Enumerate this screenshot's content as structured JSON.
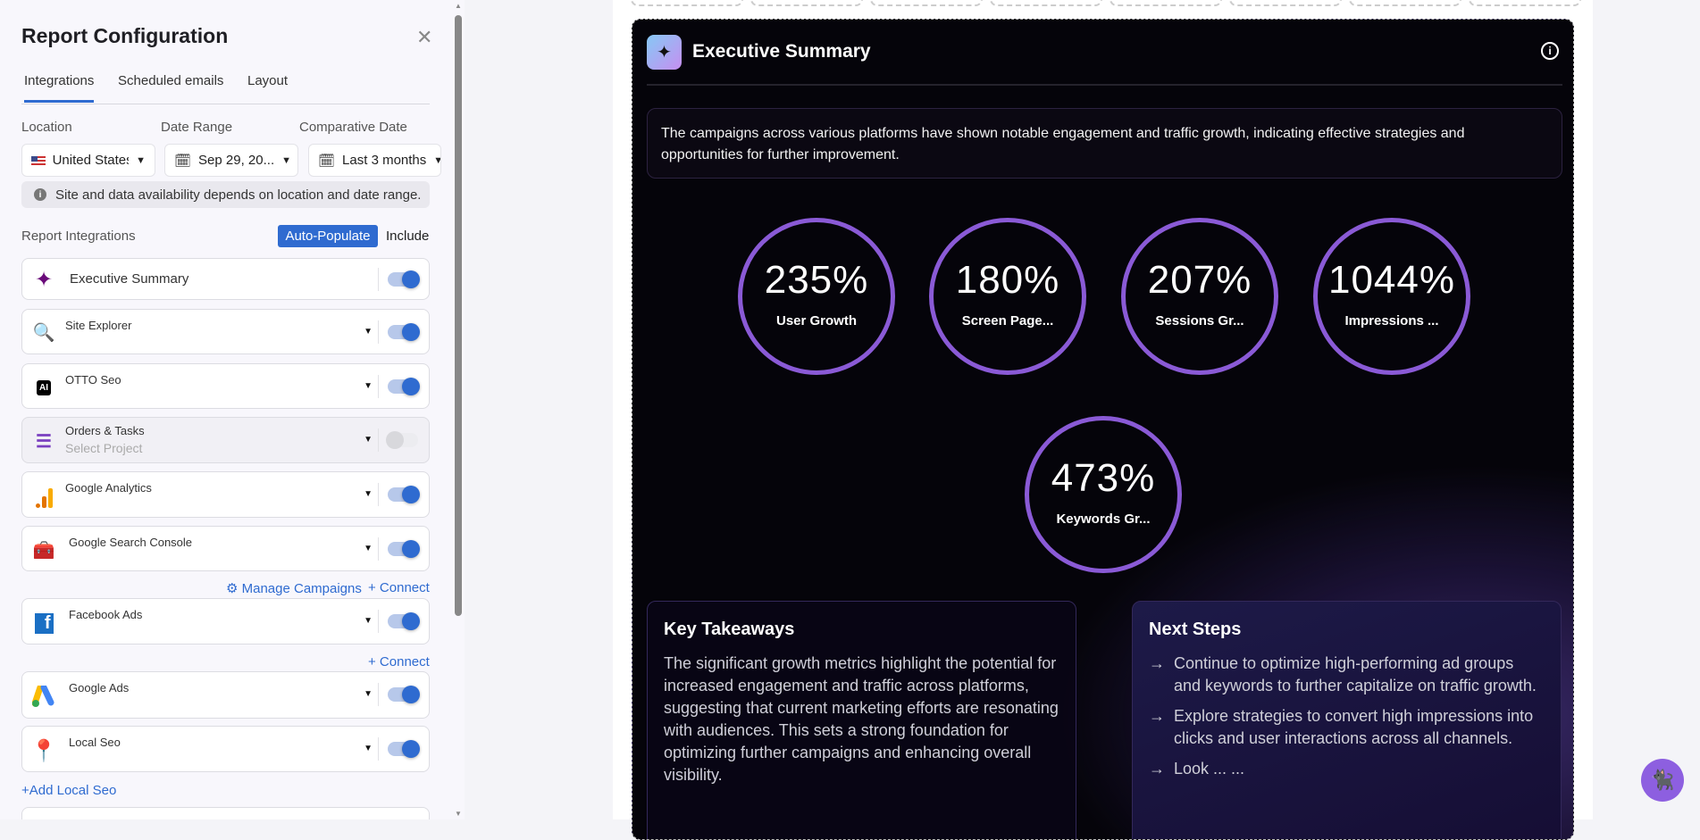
{
  "panel": {
    "title": "Report Configuration",
    "close_icon": "close-icon",
    "tabs": [
      {
        "label": "Integrations",
        "active": true
      },
      {
        "label": "Scheduled emails"
      },
      {
        "label": "Layout"
      }
    ],
    "location": {
      "label": "Location",
      "value": "United States"
    },
    "date_range": {
      "label": "Date Range",
      "value": "Sep 29, 20..."
    },
    "comparative": {
      "label": "Comparative Date",
      "value": "Last 3 months"
    },
    "info": "Site and data availability depends on location and date range.",
    "integrations_label": "Report Integrations",
    "auto_populate": "Auto-Populate",
    "include": "Include",
    "rows": [
      {
        "name": "Executive Summary",
        "icon": "sparkle-icon",
        "on": true
      },
      {
        "name": "Site Explorer",
        "icon": "site-explorer-icon",
        "on": true
      },
      {
        "name": "OTTO Seo",
        "icon": "ai-chip-icon",
        "on": true
      },
      {
        "name": "Orders & Tasks",
        "sub": "Select Project",
        "icon": "tasks-icon",
        "on": false
      },
      {
        "name": "Google Analytics",
        "icon": "google-analytics-icon",
        "on": true
      },
      {
        "name": "Google Search Console",
        "icon": "search-console-icon",
        "on": true
      },
      {
        "name": "Facebook Ads",
        "icon": "facebook-icon",
        "on": true
      },
      {
        "name": "Google Ads",
        "icon": "google-ads-icon",
        "on": true
      },
      {
        "name": "Local Seo",
        "icon": "map-pin-icon",
        "on": true
      }
    ],
    "manage_campaigns": "Manage Campaigns",
    "connect": "+ Connect",
    "add_local_seo": "+Add Local Seo"
  },
  "summary": {
    "title": "Executive Summary",
    "text": "The campaigns across various platforms have shown notable engagement and traffic growth, indicating effective strategies and opportunities for further improvement.",
    "metrics": [
      {
        "value": "235%",
        "label": "User Growth"
      },
      {
        "value": "180%",
        "label": "Screen Page..."
      },
      {
        "value": "207%",
        "label": "Sessions Gr..."
      },
      {
        "value": "1044%",
        "label": "Impressions ..."
      },
      {
        "value": "473%",
        "label": "Keywords Gr..."
      }
    ],
    "key_takeaways": {
      "title": "Key Takeaways",
      "text": "The significant growth metrics highlight the potential for increased engagement and traffic across platforms, suggesting that current marketing efforts are resonating with audiences. This sets a strong foundation for optimizing further campaigns and enhancing overall visibility."
    },
    "next_steps": {
      "title": "Next Steps",
      "items": [
        "Continue to optimize high-performing ad groups and keywords to further capitalize on traffic growth.",
        "Explore strategies to convert high impressions into clicks and user interactions across all channels.",
        "Look ... ..."
      ]
    }
  },
  "colors": {
    "accent": "#2f6bd0",
    "ring": "#8a5ad6",
    "card_bg": "#05040a"
  }
}
